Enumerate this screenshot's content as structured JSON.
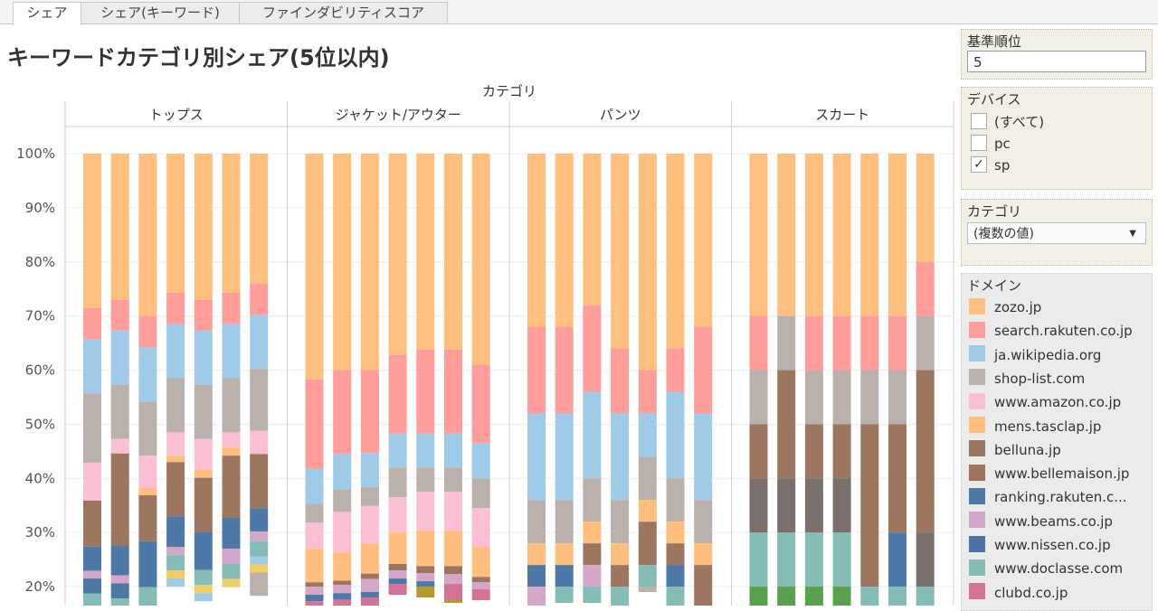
{
  "tabs": [
    {
      "label": "シェア",
      "active": true
    },
    {
      "label": "シェア(キーワード)",
      "active": false
    },
    {
      "label": "ファインダビリティスコア",
      "active": false
    }
  ],
  "page_title": "キーワードカテゴリ別シェア(5位以内)",
  "filters": {
    "rank": {
      "title": "基準順位",
      "value": "5"
    },
    "device": {
      "title": "デバイス",
      "options": [
        {
          "label": "(すべて)",
          "checked": false
        },
        {
          "label": "pc",
          "checked": false
        },
        {
          "label": "sp",
          "checked": true
        }
      ]
    },
    "category": {
      "title": "カテゴリ",
      "value": "(複数の値)"
    }
  },
  "legend": {
    "title": "ドメイン",
    "items": [
      {
        "label": "zozo.jp",
        "color": "#ffbf7f"
      },
      {
        "label": "search.rakuten.co.jp",
        "color": "#ff9d9a"
      },
      {
        "label": "ja.wikipedia.org",
        "color": "#a0cbe8"
      },
      {
        "label": "shop-list.com",
        "color": "#bab0ac"
      },
      {
        "label": "www.amazon.co.jp",
        "color": "#fabfd2"
      },
      {
        "label": "mens.tasclap.jp",
        "color": "#ffbe7d"
      },
      {
        "label": "belluna.jp",
        "color": "#9d7660"
      },
      {
        "label": "www.bellemaison.jp",
        "color": "#a0735d"
      },
      {
        "label": "ranking.rakuten.c...",
        "color": "#4e79a7"
      },
      {
        "label": "www.beams.co.jp",
        "color": "#d4a6c8"
      },
      {
        "label": "www.nissen.co.jp",
        "color": "#4c72a6"
      },
      {
        "label": "www.doclasse.com",
        "color": "#86bcb6"
      },
      {
        "label": "clubd.co.jp",
        "color": "#d37295"
      }
    ]
  },
  "chart_data": {
    "type": "bar",
    "stacked": true,
    "title": "",
    "column_header": "カテゴリ",
    "y_ticks": [
      "20%",
      "30%",
      "40%",
      "50%",
      "60%",
      "70%",
      "80%",
      "90%",
      "100%"
    ],
    "ylim": [
      0.165,
      1.0
    ],
    "categories": [
      "トップス",
      "ジャケット/アウター",
      "パンツ",
      "スカート"
    ],
    "bars_per_category": 7,
    "segment_colors": {
      "zozo": "#ffbf7f",
      "rakuten_search": "#ff9d9a",
      "wikipedia": "#a0cbe8",
      "shoplist": "#bab0ac",
      "amazon": "#fabfd2",
      "tasclap": "#ffbe7d",
      "brown": "#9d7660",
      "darkgray": "#79706e",
      "blue": "#4e79a7",
      "beams": "#d4a6c8",
      "teal": "#86bcb6",
      "clubd": "#d37295",
      "yellow": "#f1ce63",
      "lightblue": "#a0cbe8",
      "green": "#59a14f",
      "olive": "#b6992d"
    },
    "bars": [
      [
        [
          [
            "zozo",
            0.285
          ],
          [
            "rakuten_search",
            0.058
          ],
          [
            "wikipedia",
            0.1
          ],
          [
            "shoplist",
            0.128
          ],
          [
            "amazon",
            0.07
          ],
          [
            "brown",
            0.085
          ],
          [
            "blue",
            0.045
          ],
          [
            "beams",
            0.014
          ],
          [
            "blue",
            0.028
          ],
          [
            "teal",
            0.043
          ],
          [
            "yellow",
            0.015
          ]
        ],
        [
          [
            "zozo",
            0.27
          ],
          [
            "rakuten_search",
            0.057
          ],
          [
            "wikipedia",
            0.1
          ],
          [
            "shoplist",
            0.1
          ],
          [
            "amazon",
            0.027
          ],
          [
            "brown",
            0.17
          ],
          [
            "blue",
            0.055
          ],
          [
            "beams",
            0.015
          ],
          [
            "blue",
            0.028
          ],
          [
            "teal",
            0.043
          ],
          [
            "yellow",
            0.012
          ],
          [
            "wikipedia",
            0.015
          ]
        ],
        [
          [
            "zozo",
            0.3
          ],
          [
            "rakuten_search",
            0.058
          ],
          [
            "wikipedia",
            0.1
          ],
          [
            "shoplist",
            0.1
          ],
          [
            "amazon",
            0.06
          ],
          [
            "tasclap",
            0.013
          ],
          [
            "brown",
            0.085
          ],
          [
            "blue",
            0.085
          ],
          [
            "teal",
            0.043
          ],
          [
            "yellow",
            0.011
          ]
        ],
        [
          [
            "zozo",
            0.257
          ],
          [
            "rakuten_search",
            0.058
          ],
          [
            "wikipedia",
            0.1
          ],
          [
            "shoplist",
            0.1
          ],
          [
            "amazon",
            0.043
          ],
          [
            "tasclap",
            0.012
          ],
          [
            "brown",
            0.1
          ],
          [
            "blue",
            0.057
          ],
          [
            "beams",
            0.015
          ],
          [
            "teal",
            0.028
          ],
          [
            "yellow",
            0.015
          ],
          [
            "wikipedia",
            0.015
          ]
        ],
        [
          [
            "zozo",
            0.27
          ],
          [
            "rakuten_search",
            0.057
          ],
          [
            "wikipedia",
            0.1
          ],
          [
            "shoplist",
            0.1
          ],
          [
            "amazon",
            0.057
          ],
          [
            "tasclap",
            0.015
          ],
          [
            "brown",
            0.1
          ],
          [
            "blue",
            0.07
          ],
          [
            "teal",
            0.028
          ],
          [
            "yellow",
            0.015
          ],
          [
            "wikipedia",
            0.015
          ]
        ],
        [
          [
            "zozo",
            0.257
          ],
          [
            "rakuten_search",
            0.058
          ],
          [
            "wikipedia",
            0.1
          ],
          [
            "shoplist",
            0.1
          ],
          [
            "amazon",
            0.028
          ],
          [
            "tasclap",
            0.015
          ],
          [
            "brown",
            0.115
          ],
          [
            "blue",
            0.057
          ],
          [
            "beams",
            0.028
          ],
          [
            "teal",
            0.028
          ],
          [
            "yellow",
            0.015
          ]
        ],
        [
          [
            "zozo",
            0.24
          ],
          [
            "rakuten_search",
            0.058
          ],
          [
            "wikipedia",
            0.1
          ],
          [
            "shoplist",
            0.114
          ],
          [
            "amazon",
            0.043
          ],
          [
            "brown",
            0.1
          ],
          [
            "blue",
            0.043
          ],
          [
            "beams",
            0.018
          ],
          [
            "teal",
            0.028
          ],
          [
            "wikipedia",
            0.015
          ],
          [
            "yellow",
            0.015
          ],
          [
            "shoplist",
            0.043
          ]
        ]
      ],
      [
        [
          [
            "zozo",
            0.417
          ],
          [
            "rakuten_search",
            0.165
          ],
          [
            "wikipedia",
            0.065
          ],
          [
            "shoplist",
            0.035
          ],
          [
            "amazon",
            0.048
          ],
          [
            "tasclap",
            0.062
          ],
          [
            "brown",
            0.008
          ],
          [
            "beams",
            0.015
          ],
          [
            "blue",
            0.012
          ],
          [
            "clubd",
            0.02
          ]
        ],
        [
          [
            "zozo",
            0.4
          ],
          [
            "rakuten_search",
            0.155
          ],
          [
            "wikipedia",
            0.065
          ],
          [
            "shoplist",
            0.042
          ],
          [
            "amazon",
            0.075
          ],
          [
            "tasclap",
            0.052
          ],
          [
            "brown",
            0.008
          ],
          [
            "beams",
            0.015
          ],
          [
            "blue",
            0.012
          ],
          [
            "clubd",
            0.02
          ]
        ],
        [
          [
            "zozo",
            0.4
          ],
          [
            "rakuten_search",
            0.153
          ],
          [
            "wikipedia",
            0.063
          ],
          [
            "shoplist",
            0.035
          ],
          [
            "amazon",
            0.07
          ],
          [
            "tasclap",
            0.055
          ],
          [
            "brown",
            0.01
          ],
          [
            "beams",
            0.024
          ],
          [
            "blue",
            0.01
          ],
          [
            "clubd",
            0.02
          ]
        ],
        [
          [
            "zozo",
            0.372
          ],
          [
            "rakuten_search",
            0.145
          ],
          [
            "wikipedia",
            0.063
          ],
          [
            "shoplist",
            0.055
          ],
          [
            "amazon",
            0.065
          ],
          [
            "tasclap",
            0.058
          ],
          [
            "brown",
            0.012
          ],
          [
            "beams",
            0.015
          ],
          [
            "blue",
            0.01
          ],
          [
            "clubd",
            0.02
          ]
        ],
        [
          [
            "zozo",
            0.362
          ],
          [
            "rakuten_search",
            0.155
          ],
          [
            "wikipedia",
            0.063
          ],
          [
            "shoplist",
            0.045
          ],
          [
            "amazon",
            0.072
          ],
          [
            "tasclap",
            0.065
          ],
          [
            "brown",
            0.013
          ],
          [
            "beams",
            0.015
          ],
          [
            "blue",
            0.01
          ],
          [
            "olive",
            0.02
          ]
        ],
        [
          [
            "zozo",
            0.362
          ],
          [
            "rakuten_search",
            0.155
          ],
          [
            "wikipedia",
            0.063
          ],
          [
            "shoplist",
            0.045
          ],
          [
            "amazon",
            0.072
          ],
          [
            "tasclap",
            0.065
          ],
          [
            "brown",
            0.015
          ],
          [
            "beams",
            0.018
          ],
          [
            "clubd",
            0.03
          ],
          [
            "olive",
            0.005
          ]
        ],
        [
          [
            "zozo",
            0.39
          ],
          [
            "rakuten_search",
            0.145
          ],
          [
            "wikipedia",
            0.065
          ],
          [
            "shoplist",
            0.055
          ],
          [
            "amazon",
            0.072
          ],
          [
            "tasclap",
            0.055
          ],
          [
            "brown",
            0.01
          ],
          [
            "beams",
            0.013
          ],
          [
            "clubd",
            0.02
          ]
        ]
      ],
      [
        [
          [
            "zozo",
            0.32
          ],
          [
            "rakuten_search",
            0.16
          ],
          [
            "wikipedia",
            0.16
          ],
          [
            "shoplist",
            0.08
          ],
          [
            "tasclap",
            0.04
          ],
          [
            "blue",
            0.04
          ],
          [
            "beams",
            0.04
          ],
          [
            "teal",
            0.01
          ]
        ],
        [
          [
            "zozo",
            0.32
          ],
          [
            "rakuten_search",
            0.16
          ],
          [
            "wikipedia",
            0.16
          ],
          [
            "shoplist",
            0.08
          ],
          [
            "tasclap",
            0.04
          ],
          [
            "blue",
            0.04
          ],
          [
            "teal",
            0.03
          ]
        ],
        [
          [
            "zozo",
            0.28
          ],
          [
            "rakuten_search",
            0.16
          ],
          [
            "wikipedia",
            0.16
          ],
          [
            "shoplist",
            0.08
          ],
          [
            "tasclap",
            0.04
          ],
          [
            "brown",
            0.04
          ],
          [
            "beams",
            0.04
          ],
          [
            "teal",
            0.03
          ]
        ],
        [
          [
            "zozo",
            0.36
          ],
          [
            "rakuten_search",
            0.12
          ],
          [
            "wikipedia",
            0.16
          ],
          [
            "shoplist",
            0.08
          ],
          [
            "tasclap",
            0.04
          ],
          [
            "brown",
            0.04
          ],
          [
            "teal",
            0.04
          ],
          [
            "shoplist",
            0.01
          ]
        ],
        [
          [
            "zozo",
            0.4
          ],
          [
            "rakuten_search",
            0.08
          ],
          [
            "wikipedia",
            0.08
          ],
          [
            "shoplist",
            0.08
          ],
          [
            "tasclap",
            0.04
          ],
          [
            "brown",
            0.08
          ],
          [
            "teal",
            0.04
          ],
          [
            "shoplist",
            0.01
          ]
        ],
        [
          [
            "zozo",
            0.36
          ],
          [
            "rakuten_search",
            0.08
          ],
          [
            "wikipedia",
            0.16
          ],
          [
            "shoplist",
            0.08
          ],
          [
            "tasclap",
            0.04
          ],
          [
            "brown",
            0.04
          ],
          [
            "blue",
            0.04
          ],
          [
            "teal",
            0.04
          ],
          [
            "shoplist",
            0.01
          ]
        ],
        [
          [
            "zozo",
            0.32
          ],
          [
            "rakuten_search",
            0.16
          ],
          [
            "wikipedia",
            0.16
          ],
          [
            "shoplist",
            0.08
          ],
          [
            "tasclap",
            0.04
          ],
          [
            "brown",
            0.08
          ],
          [
            "teal",
            0.01
          ]
        ]
      ],
      [
        [
          [
            "zozo",
            0.3
          ],
          [
            "rakuten_search",
            0.1
          ],
          [
            "shoplist",
            0.1
          ],
          [
            "brown",
            0.1
          ],
          [
            "darkgray",
            0.1
          ],
          [
            "teal",
            0.1
          ],
          [
            "green",
            0.04
          ]
        ],
        [
          [
            "zozo",
            0.3
          ],
          [
            "shoplist",
            0.1
          ],
          [
            "brown",
            0.2
          ],
          [
            "darkgray",
            0.1
          ],
          [
            "teal",
            0.1
          ],
          [
            "green",
            0.04
          ]
        ],
        [
          [
            "zozo",
            0.3
          ],
          [
            "rakuten_search",
            0.1
          ],
          [
            "shoplist",
            0.1
          ],
          [
            "brown",
            0.1
          ],
          [
            "darkgray",
            0.1
          ],
          [
            "teal",
            0.1
          ],
          [
            "green",
            0.04
          ]
        ],
        [
          [
            "zozo",
            0.3
          ],
          [
            "rakuten_search",
            0.1
          ],
          [
            "shoplist",
            0.1
          ],
          [
            "brown",
            0.1
          ],
          [
            "darkgray",
            0.1
          ],
          [
            "teal",
            0.1
          ],
          [
            "green",
            0.04
          ]
        ],
        [
          [
            "zozo",
            0.3
          ],
          [
            "rakuten_search",
            0.1
          ],
          [
            "shoplist",
            0.1
          ],
          [
            "brown",
            0.3
          ],
          [
            "teal",
            0.04
          ]
        ],
        [
          [
            "zozo",
            0.3
          ],
          [
            "rakuten_search",
            0.1
          ],
          [
            "shoplist",
            0.1
          ],
          [
            "brown",
            0.2
          ],
          [
            "blue",
            0.1
          ],
          [
            "teal",
            0.04
          ]
        ],
        [
          [
            "zozo",
            0.2
          ],
          [
            "rakuten_search",
            0.1
          ],
          [
            "shoplist",
            0.1
          ],
          [
            "brown",
            0.3
          ],
          [
            "darkgray",
            0.1
          ],
          [
            "teal",
            0.04
          ]
        ]
      ]
    ]
  }
}
